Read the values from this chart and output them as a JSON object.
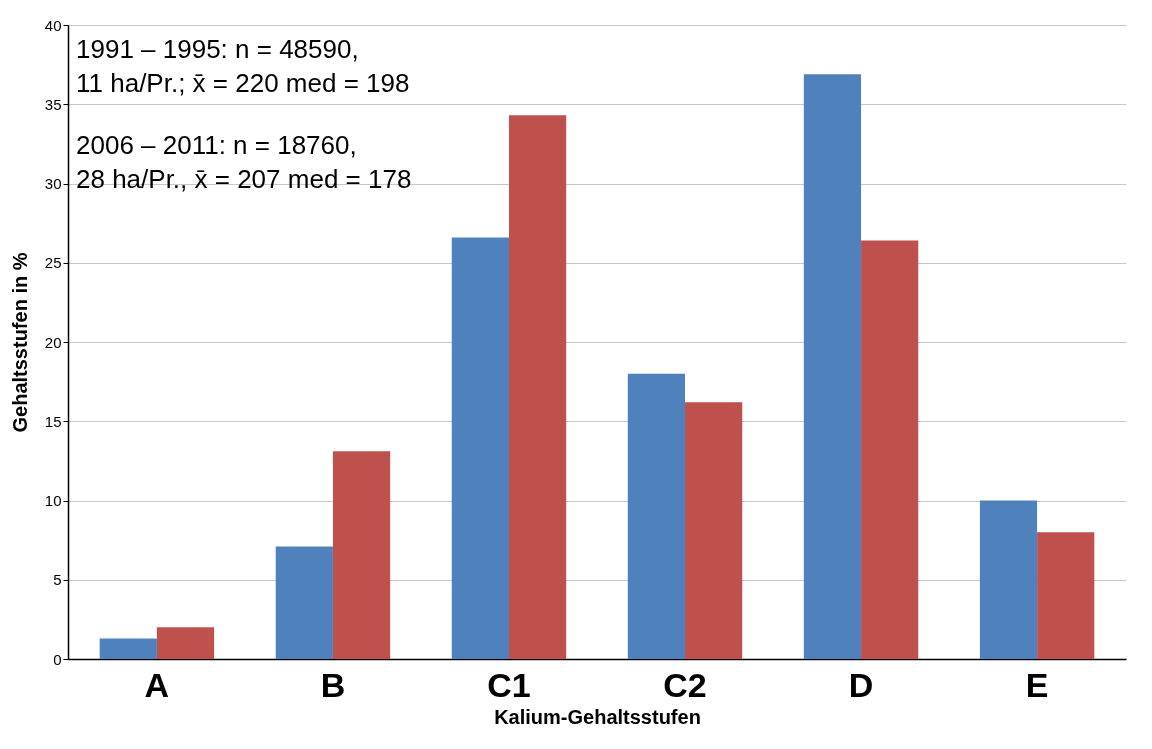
{
  "chart_data": {
    "type": "bar",
    "xlabel": "Kalium-Gehaltsstufen",
    "ylabel": "Gehaltsstufen in %",
    "categories": [
      "A",
      "B",
      "C1",
      "C2",
      "D",
      "E"
    ],
    "series": [
      {
        "color": "#4f81bd",
        "values": [
          1.3,
          7.1,
          26.6,
          18.0,
          36.9,
          10.0
        ]
      },
      {
        "color": "#c0504d",
        "values": [
          2.0,
          13.1,
          34.3,
          16.2,
          26.4,
          8.0
        ]
      }
    ],
    "ylim": [
      0,
      40
    ],
    "yticks": [
      0,
      5,
      10,
      15,
      20,
      25,
      30,
      35,
      40
    ],
    "grid": "y",
    "annotations": [
      "1991 – 1995: n = 48590,",
      "11 ha/Pr.; x̄ = 220  med = 198",
      "2006 – 2011: n = 18760,",
      "28 ha/Pr., x̄ = 207  med = 178"
    ]
  }
}
